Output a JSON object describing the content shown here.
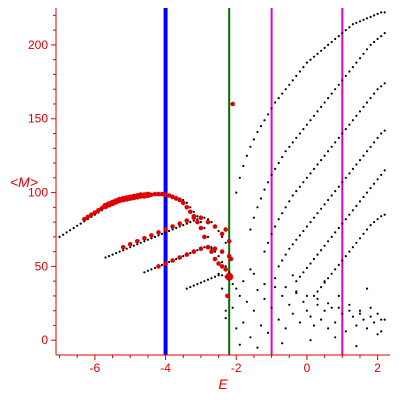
{
  "chart_data": {
    "type": "scatter",
    "title": "",
    "xlabel": "E",
    "ylabel": "<M>",
    "xlim": [
      -7.1,
      2.35
    ],
    "ylim": [
      -10,
      225
    ],
    "x_ticks": [
      -6,
      -4,
      -2,
      0,
      2
    ],
    "y_ticks": [
      0,
      50,
      100,
      150,
      200
    ],
    "grid": false,
    "legend": "none",
    "colors": {
      "axis": "#e00000",
      "tick_label": "#e00000",
      "black_points": "#000000",
      "red_points": "#e00000",
      "line_blue": "#0000ff",
      "line_green": "#007000",
      "line_magenta": "#e000e0"
    },
    "vertical_lines": [
      {
        "x": -4.0,
        "color": "#0000ff",
        "width": "thick"
      },
      {
        "x": -2.2,
        "color": "#007000",
        "width": "thin"
      },
      {
        "x": -1.0,
        "color": "#e000e0",
        "width": "thin"
      },
      {
        "x": 1.0,
        "color": "#e000e0",
        "width": "thin"
      }
    ],
    "series": [
      {
        "color": "black",
        "x": [
          -7.0,
          -6.9,
          -6.8,
          -6.7,
          -6.6,
          -6.5,
          -6.4,
          -6.3,
          -6.2,
          -6.1,
          -6.0,
          -5.9,
          -5.8,
          -5.7,
          -5.6,
          -5.5,
          -5.4,
          -5.3,
          -5.2,
          -5.1,
          -5.0,
          -4.9,
          -4.8,
          -4.7,
          -4.6,
          -4.5,
          -4.4,
          -4.3,
          -4.2,
          -4.1,
          -4.0,
          -3.9,
          -3.8,
          -3.7,
          -3.6,
          -3.5,
          -3.4,
          -3.3,
          -3.2,
          -3.1,
          -3.0,
          -2.9,
          -2.8,
          -2.7,
          -2.6,
          -2.5,
          -2.4,
          -2.3
        ],
        "y": [
          70,
          71.5,
          73,
          74.5,
          76,
          77.5,
          79,
          80.5,
          82,
          83.5,
          85,
          86.5,
          88,
          89.5,
          91,
          92,
          93,
          94,
          95,
          95.5,
          96,
          96.5,
          97,
          97.5,
          98,
          98,
          98.5,
          98.5,
          99,
          99,
          99,
          98.5,
          98,
          97,
          96,
          95,
          93,
          90,
          87,
          84,
          80,
          76,
          70,
          63,
          55,
          45,
          35,
          20
        ]
      },
      {
        "color": "black",
        "x": [
          -5.7,
          -5.6,
          -5.5,
          -5.4,
          -5.3,
          -5.2,
          -5.1,
          -5.0,
          -4.9,
          -4.8,
          -4.7,
          -4.6,
          -4.5,
          -4.4,
          -4.3,
          -4.2,
          -4.1,
          -4.0,
          -3.9,
          -3.8,
          -3.7,
          -3.6,
          -3.5,
          -3.4,
          -3.3,
          -3.2,
          -3.1,
          -3.0,
          -2.9,
          -2.8,
          -2.7,
          -2.6,
          -2.5,
          -2.4,
          -2.3
        ],
        "y": [
          56,
          57,
          58,
          59,
          60,
          61,
          62,
          63,
          64,
          65,
          66,
          67,
          68,
          69,
          70,
          71,
          72,
          73,
          74,
          75,
          76,
          77,
          78,
          79,
          80,
          81,
          82,
          83,
          83,
          82,
          80,
          77,
          74,
          70,
          66
        ]
      },
      {
        "color": "black",
        "x": [
          -4.6,
          -4.5,
          -4.4,
          -4.3,
          -4.2,
          -4.1,
          -4.0,
          -3.9,
          -3.8,
          -3.7,
          -3.6,
          -3.5,
          -3.4,
          -3.3,
          -3.2,
          -3.1,
          -3.0,
          -2.9,
          -2.8,
          -2.7,
          -2.6,
          -2.5,
          -2.4,
          -2.3,
          -2.2
        ],
        "y": [
          46,
          47,
          48,
          49,
          50,
          51,
          52,
          53,
          54,
          55,
          56,
          57,
          58,
          59,
          60,
          61,
          62,
          63,
          63,
          62,
          60,
          57,
          53,
          50,
          46
        ]
      },
      {
        "color": "black",
        "x": [
          -3.4,
          -3.3,
          -3.2,
          -3.1,
          -3.0,
          -2.9,
          -2.8,
          -2.7,
          -2.6,
          -2.5,
          -2.4,
          -2.3,
          -2.2,
          -2.1,
          -2.0
        ],
        "y": [
          35,
          36,
          37,
          38,
          39,
          40,
          41,
          42,
          43,
          44,
          44,
          43,
          41,
          38,
          35
        ]
      },
      {
        "color": "black",
        "x": [
          -2.0,
          -1.9,
          -1.8,
          -1.7,
          -1.6,
          -1.5,
          -1.4,
          -1.3,
          -1.2,
          -1.1,
          -1.0,
          -0.9,
          -0.8,
          -0.7,
          -0.6,
          -0.5,
          -0.4,
          -0.3,
          -0.2,
          -0.1,
          0.0,
          0.1,
          0.2,
          0.3,
          0.4,
          0.5,
          0.6,
          0.7,
          0.8,
          0.9,
          1.0,
          1.1,
          1.2,
          1.3,
          1.4,
          1.5,
          1.6,
          1.7,
          1.8,
          1.9,
          2.0,
          2.1,
          2.2
        ],
        "y": [
          100,
          110,
          118,
          125,
          131,
          136,
          141,
          145,
          149,
          153,
          157,
          161,
          164,
          167,
          170,
          173,
          176,
          179,
          182,
          185,
          188,
          190,
          192,
          194,
          196,
          198,
          200,
          202,
          204,
          206,
          208,
          210,
          212,
          214,
          215,
          216,
          217,
          218,
          219,
          220,
          221,
          222,
          222
        ]
      },
      {
        "color": "black",
        "x": [
          -1.6,
          -1.5,
          -1.4,
          -1.3,
          -1.2,
          -1.1,
          -1.0,
          -0.9,
          -0.8,
          -0.7,
          -0.6,
          -0.5,
          -0.4,
          -0.3,
          -0.2,
          -0.1,
          0.0,
          0.1,
          0.2,
          0.3,
          0.4,
          0.5,
          0.6,
          0.7,
          0.8,
          0.9,
          1.0,
          1.1,
          1.2,
          1.3,
          1.4,
          1.5,
          1.6,
          1.7,
          1.8,
          1.9,
          2.0,
          2.1,
          2.2
        ],
        "y": [
          75,
          83,
          90,
          96,
          102,
          107,
          112,
          116,
          120,
          124,
          128,
          131,
          134,
          137,
          140,
          143,
          146,
          149,
          152,
          155,
          158,
          161,
          164,
          167,
          170,
          173,
          176,
          179,
          182,
          185,
          188,
          191,
          194,
          197,
          200,
          202,
          204,
          206,
          208
        ]
      },
      {
        "color": "black",
        "x": [
          -1.2,
          -1.1,
          -1.0,
          -0.9,
          -0.8,
          -0.7,
          -0.6,
          -0.5,
          -0.4,
          -0.3,
          -0.2,
          -0.1,
          0.0,
          0.1,
          0.2,
          0.3,
          0.4,
          0.5,
          0.6,
          0.7,
          0.8,
          0.9,
          1.0,
          1.1,
          1.2,
          1.3,
          1.4,
          1.5,
          1.6,
          1.7,
          1.8,
          1.9,
          2.0,
          2.1,
          2.2
        ],
        "y": [
          60,
          66,
          72,
          77,
          82,
          86,
          90,
          94,
          98,
          101,
          104,
          107,
          110,
          113,
          116,
          119,
          122,
          125,
          128,
          131,
          134,
          137,
          140,
          143,
          146,
          149,
          152,
          155,
          158,
          161,
          164,
          167,
          170,
          172,
          174
        ]
      },
      {
        "color": "black",
        "x": [
          -0.8,
          -0.7,
          -0.6,
          -0.5,
          -0.4,
          -0.3,
          -0.2,
          -0.1,
          0.0,
          0.1,
          0.2,
          0.3,
          0.4,
          0.5,
          0.6,
          0.7,
          0.8,
          0.9,
          1.0,
          1.1,
          1.2,
          1.3,
          1.4,
          1.5,
          1.6,
          1.7,
          1.8,
          1.9,
          2.0,
          2.1,
          2.2
        ],
        "y": [
          50,
          54,
          58,
          62,
          65,
          68,
          71,
          74,
          77,
          80,
          83,
          86,
          89,
          92,
          95,
          98,
          101,
          104,
          107,
          110,
          113,
          116,
          119,
          122,
          125,
          128,
          131,
          134,
          137,
          140,
          142
        ]
      },
      {
        "color": "black",
        "x": [
          -0.3,
          -0.2,
          -0.1,
          0.0,
          0.1,
          0.2,
          0.3,
          0.4,
          0.5,
          0.6,
          0.7,
          0.8,
          0.9,
          1.0,
          1.1,
          1.2,
          1.3,
          1.4,
          1.5,
          1.6,
          1.7,
          1.8,
          1.9,
          2.0,
          2.1,
          2.2
        ],
        "y": [
          40,
          43,
          46,
          49,
          52,
          55,
          58,
          61,
          64,
          67,
          70,
          73,
          76,
          79,
          82,
          85,
          88,
          91,
          94,
          97,
          100,
          103,
          106,
          109,
          112,
          115
        ]
      },
      {
        "color": "black",
        "x": [
          0.2,
          0.3,
          0.4,
          0.5,
          0.6,
          0.7,
          0.8,
          0.9,
          1.0,
          1.1,
          1.2,
          1.3,
          1.4,
          1.5,
          1.6,
          1.7,
          1.8,
          1.9,
          2.0,
          2.1,
          2.2
        ],
        "y": [
          30,
          33,
          36,
          39,
          42,
          45,
          48,
          51,
          54,
          57,
          60,
          63,
          66,
          69,
          72,
          75,
          78,
          80,
          82,
          84,
          85
        ]
      },
      {
        "color": "black",
        "x": [
          -2.3,
          -2.1,
          -2.0,
          -1.9,
          -1.8,
          -1.7,
          -1.6,
          -1.5,
          -1.4,
          -1.3,
          -1.2,
          -1.1,
          -1.0,
          -0.9,
          -0.8,
          -0.7,
          -0.6,
          -0.5,
          -0.4,
          -0.3,
          -0.2,
          -0.1,
          0.0,
          0.1,
          0.2,
          0.3,
          0.4,
          0.5,
          0.6,
          0.7,
          0.8,
          0.9,
          1.0,
          1.1,
          1.2,
          1.3,
          1.4,
          1.5,
          1.6,
          1.7,
          1.8,
          1.9,
          2.0,
          2.1,
          2.2,
          -1.8,
          -1.5,
          -1.2,
          -0.9,
          -0.6,
          -0.3,
          0.0,
          0.3,
          0.6,
          0.9,
          1.2,
          1.5,
          1.8,
          2.1,
          -1.9,
          -1.4,
          -0.7,
          0.1,
          0.8,
          1.4,
          2.0,
          -1.6,
          -0.4,
          0.5,
          1.7
        ],
        "y": [
          15,
          22,
          8,
          30,
          12,
          26,
          2,
          20,
          34,
          10,
          28,
          5,
          22,
          36,
          14,
          30,
          8,
          24,
          18,
          32,
          12,
          26,
          20,
          16,
          10,
          24,
          14,
          20,
          8,
          22,
          12,
          30,
          18,
          6,
          24,
          16,
          10,
          20,
          14,
          8,
          22,
          12,
          18,
          6,
          14,
          40,
          45,
          38,
          42,
          36,
          33,
          30,
          28,
          25,
          22,
          20,
          18,
          16,
          14,
          -3,
          -5,
          -2,
          0,
          2,
          -4,
          4,
          48,
          44,
          40,
          35
        ]
      },
      {
        "color": "red",
        "x": [
          -6.3,
          -6.2,
          -6.1,
          -6.0,
          -5.9,
          -5.8,
          -5.7,
          -5.6,
          -5.5,
          -5.4,
          -5.3,
          -5.2,
          -5.1,
          -5.0,
          -4.9,
          -4.8,
          -4.7,
          -4.6,
          -4.5,
          -4.4,
          -4.3,
          -4.2,
          -4.1,
          -4.0,
          -3.9,
          -3.8,
          -3.7,
          -3.6,
          -3.5,
          -3.4,
          -3.3,
          -3.2,
          -3.1,
          -3.0,
          -2.9,
          -2.8,
          -2.7,
          -2.6,
          -2.5,
          -2.4,
          -2.3,
          -5.2,
          -5.0,
          -4.8,
          -4.6,
          -4.4,
          -4.2,
          -4.0,
          -3.8,
          -3.6,
          -3.4,
          -3.2,
          -3.0,
          -2.8,
          -2.6,
          -2.4,
          -4.2,
          -4.0,
          -3.8,
          -3.6,
          -3.4,
          -3.2,
          -3.0,
          -2.8,
          -2.6,
          -2.4,
          -2.2,
          -2.2,
          -2.3,
          -2.2,
          -2.1,
          -2.15,
          -2.25
        ],
        "y": [
          82,
          83.5,
          85,
          86.5,
          88,
          89.5,
          91,
          92,
          93,
          94,
          95,
          95.5,
          96,
          96.5,
          97,
          97.5,
          98,
          98,
          98.5,
          98.5,
          99,
          99,
          99,
          98.5,
          98,
          97,
          96,
          95,
          93,
          90,
          87,
          84,
          80,
          76,
          70,
          63,
          60,
          55,
          52,
          50,
          48,
          63,
          65,
          67,
          69,
          71,
          73,
          75,
          77,
          79,
          81,
          83,
          83,
          80,
          77,
          72,
          50,
          52,
          54,
          56,
          58,
          60,
          62,
          63,
          62,
          60,
          57,
          43,
          75,
          67,
          160,
          55,
          30
        ]
      }
    ]
  }
}
